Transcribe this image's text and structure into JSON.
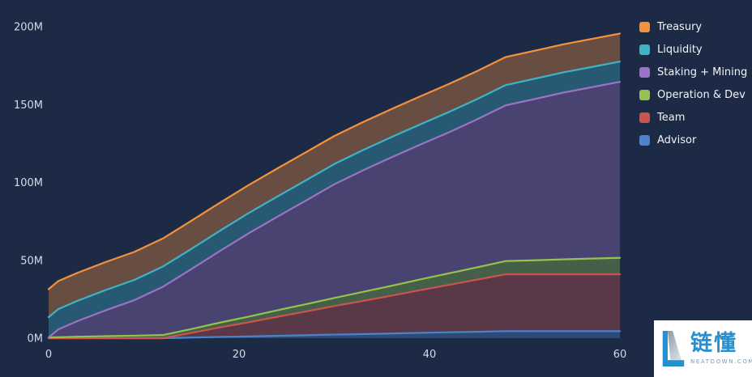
{
  "chart_data": {
    "type": "area",
    "stacked": true,
    "title": "",
    "xlabel": "",
    "ylabel": "",
    "grid": false,
    "legend_position": "top-right",
    "xlim": [
      0,
      60
    ],
    "ylim": [
      0,
      200
    ],
    "x": [
      0,
      1,
      3,
      6,
      9,
      12,
      15,
      18,
      21,
      24,
      27,
      30,
      33,
      36,
      39,
      42,
      45,
      48,
      51,
      54,
      57,
      60
    ],
    "stack_order": "bottom-to-top",
    "series": [
      {
        "name": "Advisor",
        "color": "#4c83cd",
        "values": [
          0,
          0,
          0,
          0,
          0,
          0,
          0.4,
          0.8,
          1.1,
          1.5,
          1.9,
          2.3,
          2.6,
          3,
          3.4,
          3.8,
          4.1,
          4.5,
          4.5,
          4.5,
          4.5,
          4.5
        ]
      },
      {
        "name": "Team",
        "color": "#cb544d",
        "values": [
          0,
          0,
          0,
          0,
          0,
          0,
          3,
          6.1,
          9.1,
          12.2,
          15.2,
          18.3,
          21.3,
          24.3,
          27.4,
          30.4,
          33.5,
          36.5,
          36.5,
          36.5,
          36.5,
          36.5
        ]
      },
      {
        "name": "Operation & Dev",
        "color": "#96c24e",
        "values": [
          0.5,
          0.6,
          0.9,
          1.3,
          1.6,
          2,
          2.5,
          3.1,
          3.6,
          4.2,
          4.7,
          5.2,
          5.8,
          6.3,
          6.9,
          7.4,
          7.9,
          8.5,
          9,
          9.6,
          10.1,
          10.6
        ]
      },
      {
        "name": "Staking + Mining",
        "color": "#9d72c5",
        "values": [
          0,
          5,
          10,
          16.6,
          22.8,
          31,
          38.5,
          46,
          53.5,
          60,
          66.5,
          73,
          78,
          82.5,
          86.5,
          90.5,
          95,
          100,
          103.5,
          107,
          110,
          113
        ]
      },
      {
        "name": "Liquidity",
        "color": "#3fb3c6",
        "values": [
          13,
          13,
          13,
          13,
          13,
          13,
          13,
          13,
          13,
          13,
          13,
          13,
          13,
          13,
          13,
          13,
          13,
          13,
          13,
          13,
          13,
          13
        ]
      },
      {
        "name": "Treasury",
        "color": "#f5913c",
        "values": [
          18,
          18,
          18,
          18,
          18,
          18,
          18,
          18,
          18,
          18,
          18,
          18,
          18,
          18,
          18,
          18,
          18,
          18,
          18,
          18,
          18,
          18
        ]
      }
    ],
    "fill_opacity": 0.35,
    "y_ticks": [
      {
        "value": 0,
        "label": "0M"
      },
      {
        "value": 50,
        "label": "50M"
      },
      {
        "value": 100,
        "label": "100M"
      },
      {
        "value": 150,
        "label": "150M"
      },
      {
        "value": 200,
        "label": "200M"
      }
    ],
    "x_ticks": [
      {
        "value": 0,
        "label": "0"
      },
      {
        "value": 20,
        "label": "20"
      },
      {
        "value": 40,
        "label": "40"
      },
      {
        "value": 60,
        "label": "60"
      }
    ]
  },
  "legend": {
    "items": [
      {
        "label": "Treasury",
        "color": "#f5913c"
      },
      {
        "label": "Liquidity",
        "color": "#3fb3c6"
      },
      {
        "label": "Staking + Mining",
        "color": "#9d72c5"
      },
      {
        "label": "Operation & Dev",
        "color": "#96c24e"
      },
      {
        "label": "Team",
        "color": "#cb544d"
      },
      {
        "label": "Advisor",
        "color": "#4c83cd"
      }
    ]
  },
  "watermark": {
    "brand_cjk": "链懂",
    "domain": "NEATDOWN.COM",
    "logo_color": "#2590d0"
  }
}
